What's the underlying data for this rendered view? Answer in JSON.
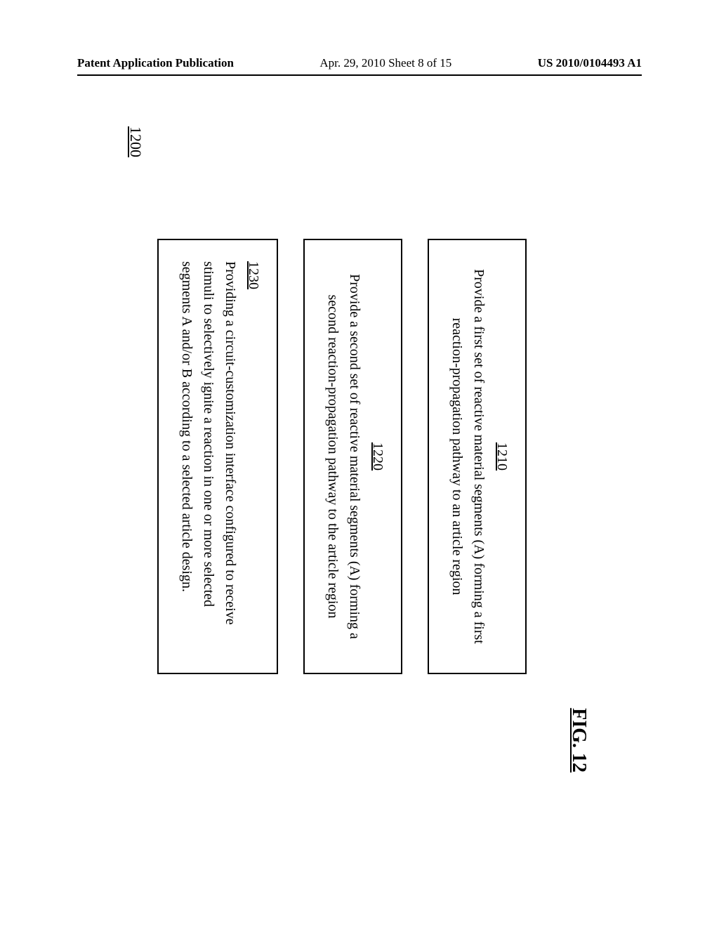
{
  "header": {
    "left": "Patent Application Publication",
    "center": "Apr. 29, 2010  Sheet 8 of 15",
    "right": "US 2010/0104493 A1"
  },
  "figure": {
    "label": "FIG. 12",
    "ref": "1200",
    "steps": [
      {
        "num": "1210",
        "text": "Provide a first set of reactive material segments (A) forming a first reaction-propagation pathway to an article region",
        "align": "center"
      },
      {
        "num": "1220",
        "text": "Provide a second set of reactive material segments (A) forming a second reaction-propagation pathway to the article region",
        "align": "center"
      },
      {
        "num": "1230",
        "text": "Providing a circuit-customization interface configured to receive stimuli to selectively ignite a reaction in one or more selected segments A and/or B according to a selected article design.",
        "align": "left"
      }
    ]
  },
  "colors": {
    "background": "#ffffff",
    "text": "#000000",
    "border": "#000000"
  }
}
